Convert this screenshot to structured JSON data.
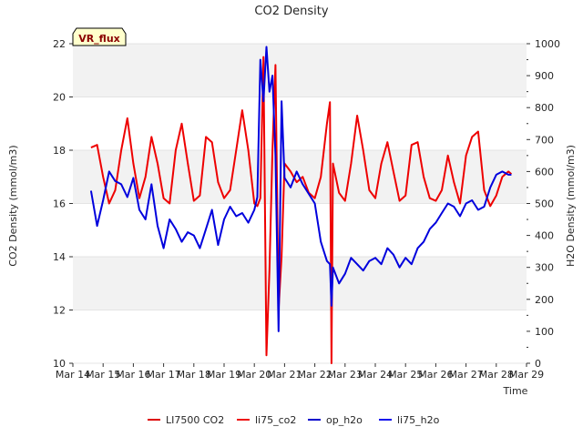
{
  "chart_data": {
    "type": "line",
    "title": "CO2 Density",
    "xlabel": "Time",
    "ylabel": "CO2 Density (mmol/m3)",
    "y2label": "H2O Density (mmol/m3)",
    "badge": "VR_flux",
    "xlim": [
      0,
      15
    ],
    "ylim": [
      10,
      22
    ],
    "y2lim": [
      0,
      1000
    ],
    "x_ticks": [
      0,
      1,
      2,
      3,
      4,
      5,
      6,
      7,
      8,
      9,
      10,
      11,
      12,
      13,
      14,
      15
    ],
    "x_tick_labels": [
      "Mar 14",
      "Mar 15",
      "Mar 16",
      "Mar 17",
      "Mar 18",
      "Mar 19",
      "Mar 20",
      "Mar 21",
      "Mar 22",
      "Mar 23",
      "Mar 24",
      "Mar 25",
      "Mar 26",
      "Mar 27",
      "Mar 28",
      "Mar 29"
    ],
    "y_ticks": [
      10,
      12,
      14,
      16,
      18,
      20,
      22
    ],
    "y2_ticks": [
      0,
      100,
      200,
      300,
      400,
      500,
      600,
      700,
      800,
      900,
      1000
    ],
    "bands": [
      [
        12,
        14
      ],
      [
        16,
        18
      ],
      [
        20,
        22
      ]
    ],
    "legend": [
      {
        "name": "LI7500 CO2",
        "color": "#dd0000"
      },
      {
        "name": "li75_co2",
        "color": "#ee1111"
      },
      {
        "name": "op_h2o",
        "color": "#0000cc"
      },
      {
        "name": "li75_h2o",
        "color": "#1111ee"
      }
    ],
    "series": [
      {
        "name": "li75_co2",
        "color": "#ee0000",
        "axis": "left",
        "x": [
          0.6,
          0.8,
          1.0,
          1.2,
          1.4,
          1.6,
          1.8,
          2.0,
          2.2,
          2.4,
          2.6,
          2.8,
          3.0,
          3.2,
          3.4,
          3.6,
          3.8,
          4.0,
          4.2,
          4.4,
          4.6,
          4.8,
          5.0,
          5.2,
          5.4,
          5.6,
          5.8,
          6.0,
          6.1,
          6.2,
          6.3,
          6.4,
          6.5,
          6.6,
          6.7,
          6.8,
          6.9,
          7.0,
          7.2,
          7.4,
          7.6,
          7.8,
          8.0,
          8.2,
          8.4,
          8.5,
          8.55,
          8.6,
          8.8,
          9.0,
          9.2,
          9.4,
          9.6,
          9.8,
          10.0,
          10.2,
          10.4,
          10.6,
          10.8,
          11.0,
          11.2,
          11.4,
          11.6,
          11.8,
          12.0,
          12.2,
          12.4,
          12.6,
          12.8,
          13.0,
          13.2,
          13.4,
          13.6,
          13.8,
          14.0,
          14.2,
          14.4,
          14.5
        ],
        "y": [
          18.1,
          18.2,
          17.0,
          16.0,
          16.5,
          18.0,
          19.2,
          17.5,
          16.2,
          17.0,
          18.5,
          17.5,
          16.2,
          16.0,
          18.0,
          19.0,
          17.5,
          16.1,
          16.3,
          18.5,
          18.3,
          16.8,
          16.2,
          16.5,
          18.0,
          19.5,
          18.0,
          16.0,
          15.9,
          16.2,
          21.5,
          10.3,
          13.5,
          18.0,
          21.2,
          12.0,
          14.0,
          17.5,
          17.2,
          16.8,
          17.0,
          16.4,
          16.2,
          17.0,
          19.0,
          19.8,
          10.0,
          17.5,
          16.4,
          16.1,
          17.5,
          19.3,
          18.0,
          16.5,
          16.2,
          17.5,
          18.3,
          17.2,
          16.1,
          16.3,
          18.2,
          18.3,
          17.0,
          16.2,
          16.1,
          16.5,
          17.8,
          16.8,
          16.0,
          17.8,
          18.5,
          18.7,
          16.5,
          15.9,
          16.3,
          17.0,
          17.2,
          17.1
        ]
      },
      {
        "name": "li75_h2o",
        "color": "#0000dd",
        "axis": "right",
        "x": [
          0.6,
          0.8,
          1.0,
          1.2,
          1.4,
          1.6,
          1.8,
          2.0,
          2.2,
          2.4,
          2.6,
          2.8,
          3.0,
          3.2,
          3.4,
          3.6,
          3.8,
          4.0,
          4.2,
          4.4,
          4.6,
          4.8,
          5.0,
          5.2,
          5.4,
          5.6,
          5.8,
          6.0,
          6.1,
          6.2,
          6.3,
          6.4,
          6.5,
          6.6,
          6.7,
          6.8,
          6.9,
          7.0,
          7.2,
          7.4,
          7.6,
          7.8,
          8.0,
          8.2,
          8.4,
          8.5,
          8.55,
          8.6,
          8.8,
          9.0,
          9.2,
          9.4,
          9.6,
          9.8,
          10.0,
          10.2,
          10.4,
          10.6,
          10.8,
          11.0,
          11.2,
          11.4,
          11.6,
          11.8,
          12.0,
          12.2,
          12.4,
          12.6,
          12.8,
          13.0,
          13.2,
          13.4,
          13.6,
          13.8,
          14.0,
          14.2,
          14.4,
          14.5
        ],
        "y": [
          540,
          430,
          510,
          600,
          570,
          560,
          520,
          580,
          480,
          450,
          560,
          430,
          360,
          450,
          420,
          380,
          410,
          400,
          360,
          420,
          480,
          370,
          450,
          490,
          460,
          470,
          440,
          480,
          520,
          950,
          820,
          990,
          850,
          900,
          650,
          100,
          820,
          580,
          550,
          600,
          560,
          530,
          500,
          380,
          320,
          310,
          180,
          300,
          250,
          280,
          330,
          310,
          290,
          320,
          330,
          310,
          360,
          340,
          300,
          330,
          310,
          360,
          380,
          420,
          440,
          470,
          500,
          490,
          460,
          500,
          510,
          480,
          490,
          550,
          590,
          600,
          590,
          590
        ]
      }
    ]
  }
}
